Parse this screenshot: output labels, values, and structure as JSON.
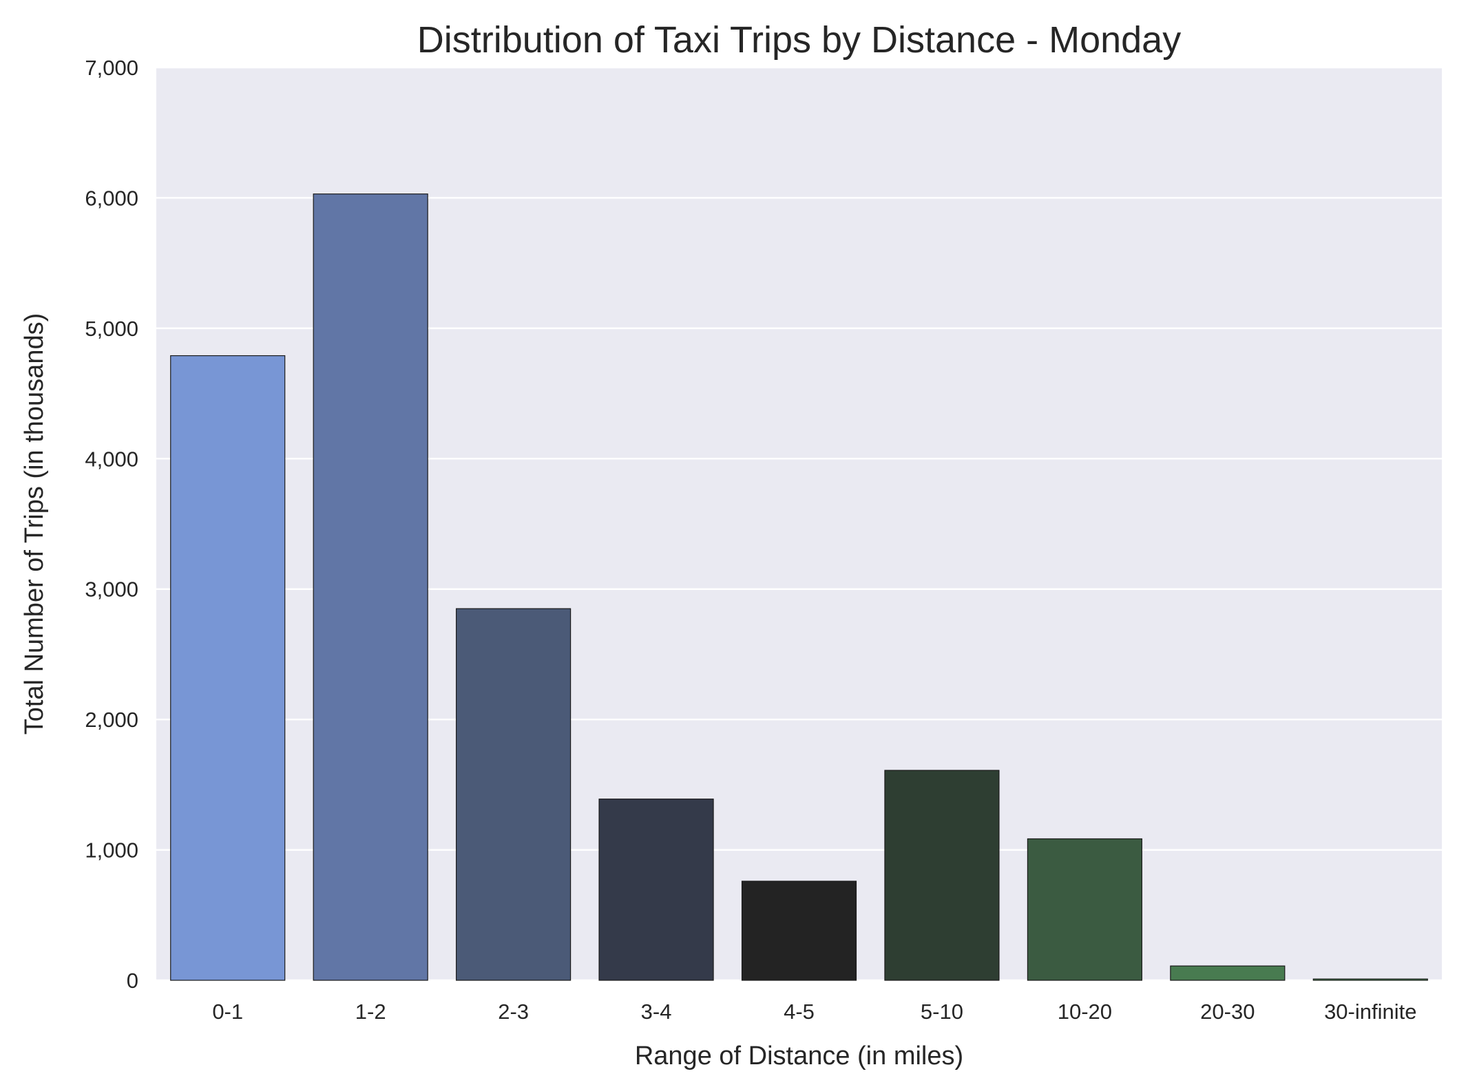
{
  "chart_data": {
    "type": "bar",
    "title": "Distribution of Taxi Trips by Distance - Monday",
    "xlabel": "Range of Distance (in miles)",
    "ylabel": "Total Number of Trips (in thousands)",
    "categories": [
      "0-1",
      "1-2",
      "2-3",
      "3-4",
      "4-5",
      "5-10",
      "10-20",
      "20-30",
      "30-infinite"
    ],
    "values": [
      4790,
      6030,
      2850,
      1390,
      760,
      1610,
      1085,
      110,
      10
    ],
    "colors": [
      "#7896d5",
      "#6176a6",
      "#4b5a77",
      "#343a4a",
      "#232323",
      "#2e3e32",
      "#3b5b41",
      "#487b50",
      "#4e9059"
    ],
    "ylim": [
      0,
      7000
    ],
    "yticks": [
      0,
      1000,
      2000,
      3000,
      4000,
      5000,
      6000,
      7000
    ],
    "ytick_labels": [
      "0",
      "1,000",
      "2,000",
      "3,000",
      "4,000",
      "5,000",
      "6,000",
      "7,000"
    ],
    "grid": true,
    "background": "#eaeaf2"
  }
}
